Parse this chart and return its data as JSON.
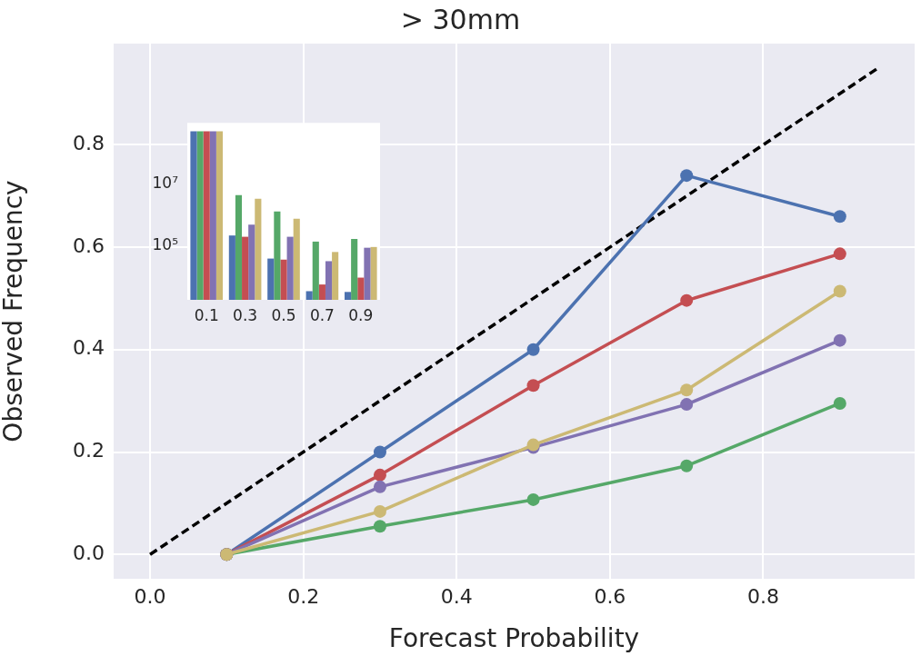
{
  "chart_data": [
    {
      "type": "line",
      "title": "> 30mm",
      "xlabel": "Forecast Probability",
      "ylabel": "Observed Frequency",
      "x": [
        0.1,
        0.3,
        0.5,
        0.7,
        0.9
      ],
      "xlim": [
        -0.0475,
        0.9975
      ],
      "ylim": [
        -0.0475,
        0.9975
      ],
      "xticks": [
        {
          "value": 0,
          "label": "0.0"
        },
        0.2,
        0.4,
        0.6,
        0.8
      ],
      "yticks": [
        {
          "value": 0,
          "label": "0.0"
        },
        0.2,
        0.4,
        0.6,
        0.8
      ],
      "grid": true,
      "legend": false,
      "marker": "circle",
      "line_style": "solid",
      "series": [
        {
          "color": "#000000",
          "x": [
            0,
            0.95
          ],
          "values": [
            0,
            0.95
          ],
          "marker": "none",
          "line_style": "dashed"
        },
        {
          "color": "#4c72b0",
          "values": [
            0.0,
            0.2,
            0.4,
            0.74,
            0.66
          ]
        },
        {
          "color": "#55a868",
          "values": [
            0.0,
            0.055,
            0.107,
            0.173,
            0.295
          ]
        },
        {
          "color": "#c44e52",
          "values": [
            0.0,
            0.155,
            0.33,
            0.496,
            0.587
          ]
        },
        {
          "color": "#8172b2",
          "values": [
            0.0,
            0.132,
            0.209,
            0.293,
            0.418
          ]
        },
        {
          "color": "#ccb974",
          "values": [
            0.0,
            0.084,
            0.214,
            0.321,
            0.514
          ]
        }
      ]
    },
    {
      "type": "bar",
      "categories": [
        "0.1",
        "0.3",
        "0.5",
        "0.7",
        "0.9"
      ],
      "log": "y",
      "ylim": [
        1900,
        900000000
      ],
      "yticks": [
        {
          "value": 100000,
          "label": "10⁵"
        },
        {
          "value": 10000000,
          "label": "10⁷"
        }
      ],
      "grid": false,
      "legend": false,
      "series": [
        {
          "color": "#4c72b0",
          "values": [
            480000000,
            220000,
            40000,
            3600,
            3400
          ]
        },
        {
          "color": "#55a868",
          "values": [
            480000000,
            4300000,
            1300000,
            140000,
            170000
          ]
        },
        {
          "color": "#c44e52",
          "values": [
            480000000,
            200000,
            37000,
            5900,
            9800
          ]
        },
        {
          "color": "#8172b2",
          "values": [
            480000000,
            490000,
            200000,
            33000,
            89000
          ]
        },
        {
          "color": "#ccb974",
          "values": [
            480000000,
            3300000,
            760000,
            65000,
            94000
          ]
        }
      ]
    }
  ]
}
